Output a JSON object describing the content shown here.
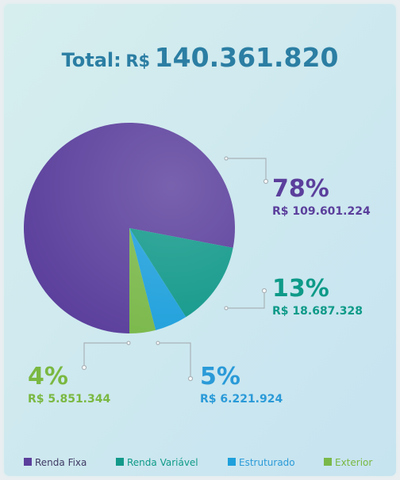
{
  "chart_data": {
    "type": "pie",
    "total_prefix": "Total:",
    "currency": "R$",
    "total": "140.361.820",
    "categories": [
      "Renda Fixa",
      "Renda Variável",
      "Estruturado",
      "Exterior"
    ],
    "values": [
      78,
      13,
      5,
      4
    ],
    "value_labels": [
      "78%",
      "13%",
      "5%",
      "4%"
    ],
    "amounts": [
      "R$ 109.601.224",
      "R$ 18.687.328",
      "R$ 6.221.924",
      "R$ 5.851.344"
    ],
    "colors": [
      "#5b3f9c",
      "#12998a",
      "#1fa0dc",
      "#7ab84a"
    ],
    "label_colors": [
      "#5b3f9c",
      "#0e9a88",
      "#2a9ad8",
      "#7ab841"
    ],
    "legend": "bottom"
  }
}
